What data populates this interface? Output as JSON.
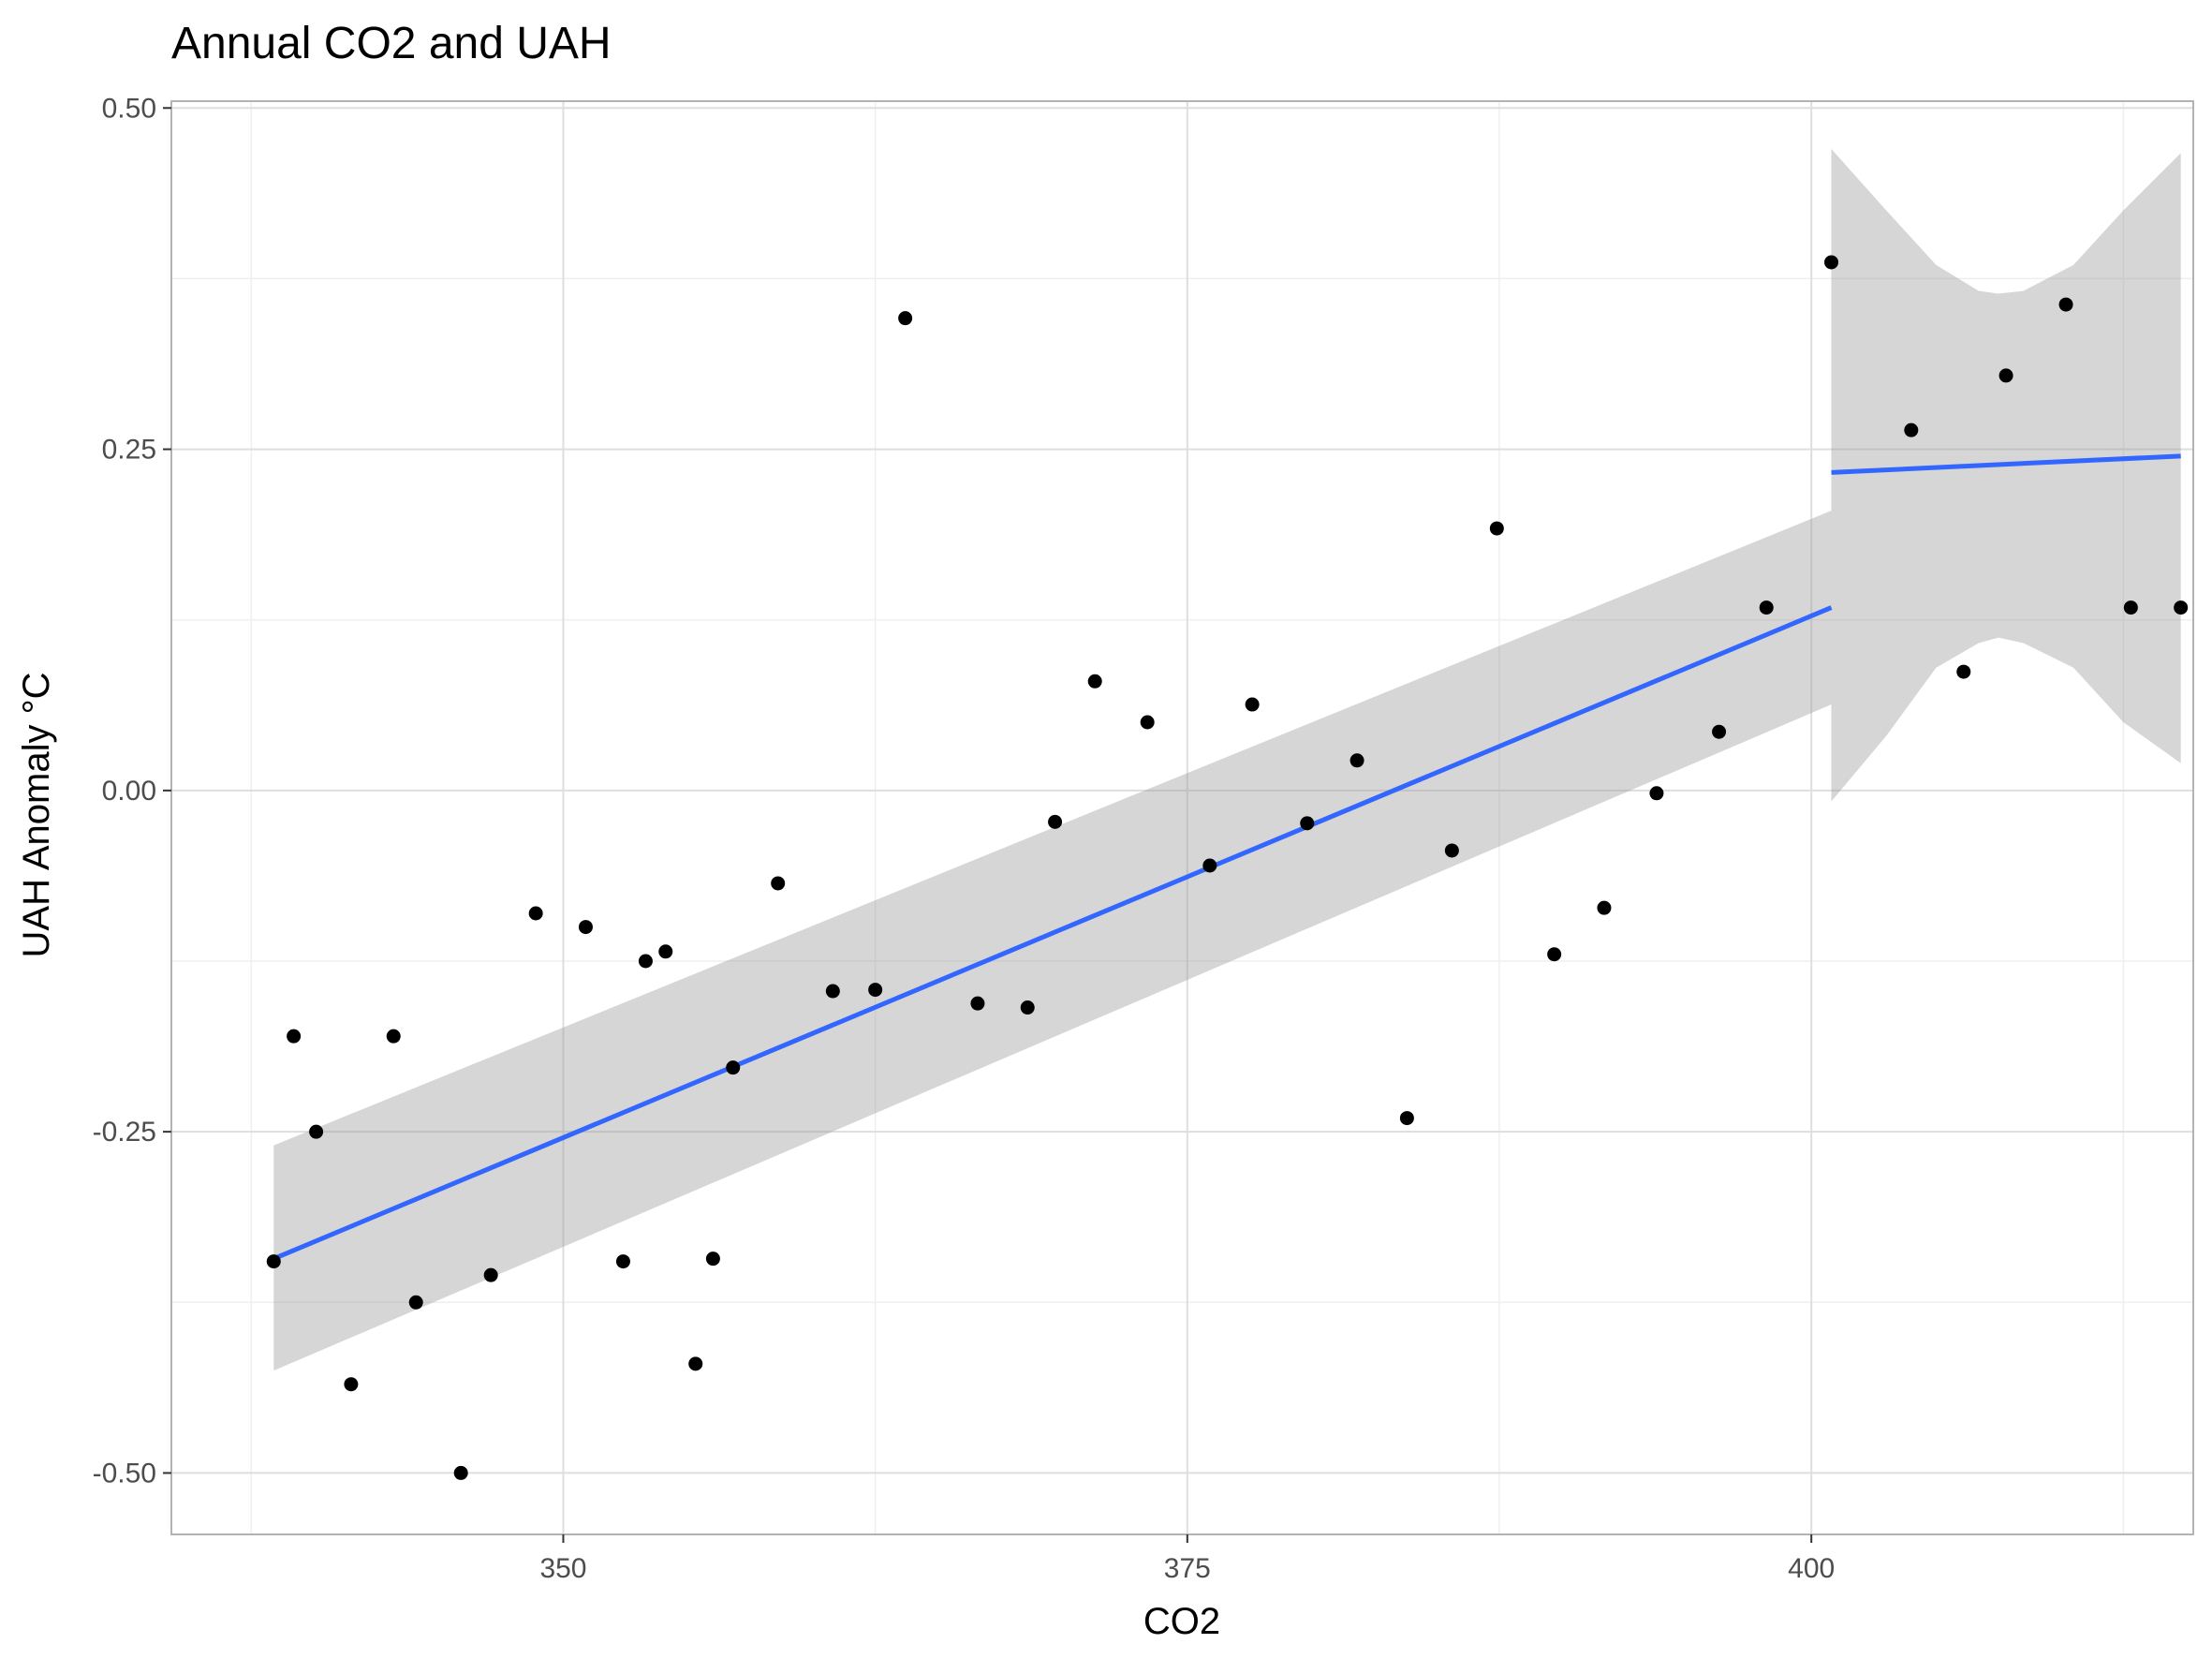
{
  "chart_data": {
    "type": "scatter",
    "title": "Annual CO2 and UAH",
    "xlabel": "CO2",
    "ylabel": "UAH Anomaly °C",
    "xlim": [
      334.3,
      415.3
    ],
    "ylim": [
      -0.545,
      0.505
    ],
    "x_ticks": [
      350,
      375,
      400
    ],
    "x_tick_labels": [
      "350",
      "375",
      "400"
    ],
    "x_minor_ticks": [
      337.5,
      362.5,
      387.5,
      412.5
    ],
    "y_ticks": [
      -0.5,
      -0.25,
      0.0,
      0.25,
      0.5
    ],
    "y_tick_labels": [
      "-0.50",
      "-0.25",
      "0.00",
      "0.25",
      "0.50"
    ],
    "y_minor_ticks": [
      -0.375,
      -0.125,
      0.125,
      0.375
    ],
    "grid": true,
    "points": {
      "x": [
        338.4,
        339.2,
        340.1,
        341.5,
        343.2,
        344.1,
        345.9,
        347.1,
        348.9,
        350.9,
        352.4,
        353.3,
        354.1,
        355.3,
        356.0,
        356.8,
        358.6,
        360.8,
        362.5,
        363.7,
        366.6,
        368.6,
        369.7,
        371.3,
        373.4,
        375.9,
        377.6,
        379.8,
        381.8,
        383.8,
        385.6,
        387.4,
        389.7,
        391.7,
        393.8,
        396.3,
        398.2,
        400.8,
        404.0,
        406.1,
        407.8,
        410.2,
        412.8,
        414.8
      ],
      "y": [
        -0.345,
        -0.18,
        -0.25,
        -0.435,
        -0.18,
        -0.375,
        -0.5,
        -0.355,
        -0.09,
        -0.1,
        -0.345,
        -0.125,
        -0.118,
        -0.42,
        -0.343,
        -0.203,
        -0.068,
        -0.147,
        -0.146,
        0.346,
        -0.156,
        -0.159,
        -0.023,
        0.08,
        0.05,
        -0.055,
        0.063,
        -0.024,
        0.022,
        -0.24,
        -0.044,
        0.192,
        -0.12,
        -0.086,
        -0.002,
        0.043,
        0.134,
        0.387,
        0.264,
        0.087,
        0.304,
        0.356,
        0.134,
        0.134
      ]
    },
    "series": [
      {
        "type": "linear_fit",
        "color": "#3366FF",
        "x": [
          338.4,
          400.8
        ],
        "y": [
          -0.343,
          0.134
        ],
        "band_upper": [
          -0.26,
          0.205
        ],
        "band_lower": [
          -0.425,
          0.063
        ]
      },
      {
        "type": "linear_fit",
        "color": "#3366FF",
        "x": [
          400.8,
          414.8
        ],
        "y": [
          0.233,
          0.245
        ],
        "band_upper_curve": [
          [
            400.8,
            0.47
          ],
          [
            403.0,
            0.425
          ],
          [
            405.0,
            0.385
          ],
          [
            406.7,
            0.366
          ],
          [
            407.5,
            0.364
          ],
          [
            408.5,
            0.366
          ],
          [
            410.5,
            0.385
          ],
          [
            412.5,
            0.425
          ],
          [
            414.8,
            0.467
          ]
        ],
        "band_lower_curve": [
          [
            400.8,
            -0.008
          ],
          [
            403.0,
            0.04
          ],
          [
            405.0,
            0.09
          ],
          [
            406.7,
            0.108
          ],
          [
            407.5,
            0.112
          ],
          [
            408.5,
            0.108
          ],
          [
            410.5,
            0.09
          ],
          [
            412.5,
            0.05
          ],
          [
            414.8,
            0.02
          ]
        ]
      }
    ],
    "colors": {
      "point": "#000000",
      "line": "#3366FF",
      "band": "#999999",
      "grid_major": "#DEDEDE",
      "grid_minor": "#EFEFEF",
      "panel_border": "#B3B3B3"
    }
  }
}
